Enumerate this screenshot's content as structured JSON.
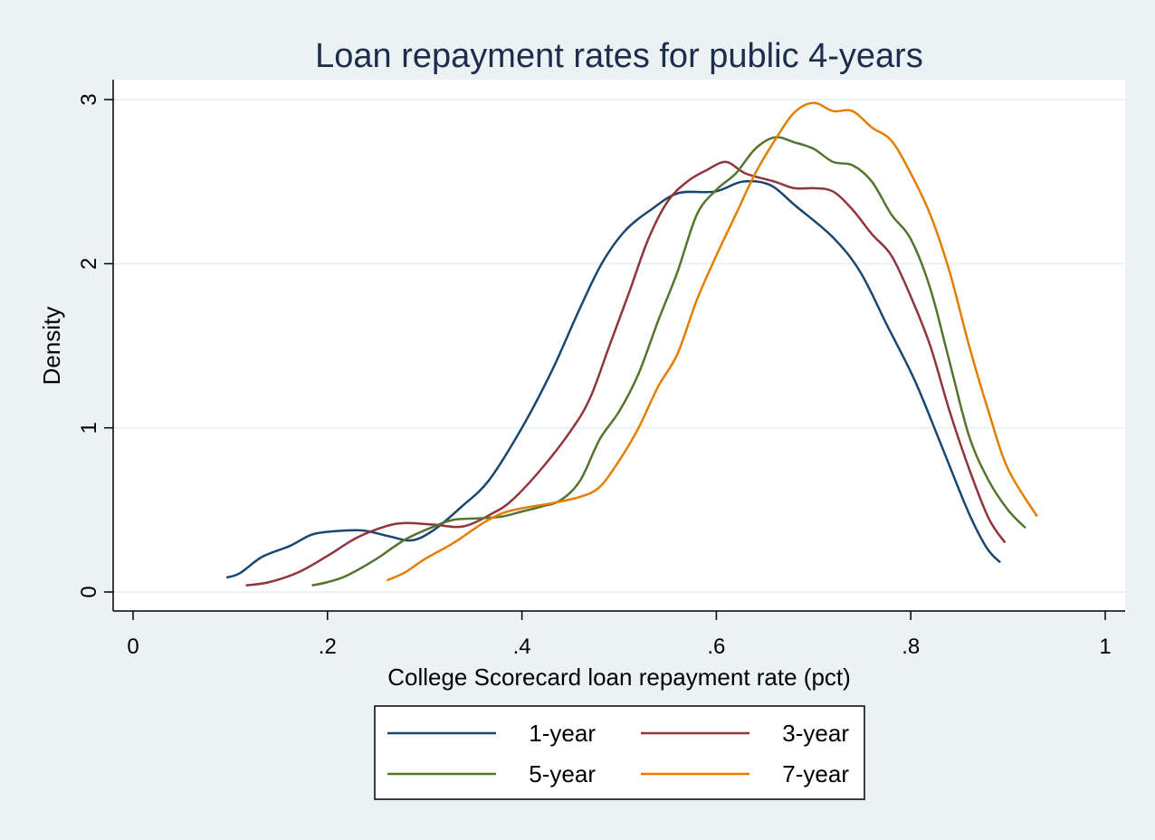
{
  "chart_data": {
    "type": "line",
    "title": "Loan repayment rates for public 4-years",
    "xlabel": "College Scorecard loan repayment rate (pct)",
    "ylabel": "Density",
    "xlim": [
      0,
      1
    ],
    "ylim": [
      0,
      3
    ],
    "xticks": [
      0,
      0.2,
      0.4,
      0.6,
      0.8,
      1
    ],
    "xtick_labels": [
      "0",
      ".2",
      ".4",
      ".6",
      ".8",
      "1"
    ],
    "yticks": [
      0,
      1,
      2,
      3
    ],
    "ytick_labels": [
      "0",
      "1",
      "2",
      "3"
    ],
    "grid": "horizontal",
    "legend_placement": "bottom",
    "series": [
      {
        "name": "1-year",
        "color": "#1a476f",
        "x": [
          0.096,
          0.11,
          0.133,
          0.161,
          0.184,
          0.207,
          0.236,
          0.263,
          0.287,
          0.31,
          0.338,
          0.366,
          0.4,
          0.431,
          0.459,
          0.482,
          0.506,
          0.533,
          0.561,
          0.599,
          0.627,
          0.655,
          0.682,
          0.72,
          0.748,
          0.776,
          0.804,
          0.831,
          0.859,
          0.878,
          0.892
        ],
        "y": [
          0.088,
          0.115,
          0.215,
          0.28,
          0.35,
          0.37,
          0.375,
          0.34,
          0.315,
          0.38,
          0.52,
          0.68,
          1.0,
          1.35,
          1.72,
          2.0,
          2.2,
          2.33,
          2.43,
          2.44,
          2.5,
          2.48,
          2.35,
          2.16,
          1.95,
          1.62,
          1.29,
          0.9,
          0.49,
          0.27,
          0.18
        ]
      },
      {
        "name": "3-year",
        "color": "#90353b",
        "x": [
          0.116,
          0.14,
          0.17,
          0.2,
          0.23,
          0.26,
          0.28,
          0.31,
          0.34,
          0.37,
          0.39,
          0.42,
          0.45,
          0.47,
          0.49,
          0.51,
          0.53,
          0.55,
          0.57,
          0.59,
          0.61,
          0.63,
          0.66,
          0.68,
          0.7,
          0.72,
          0.74,
          0.76,
          0.78,
          0.8,
          0.82,
          0.84,
          0.86,
          0.88,
          0.897
        ],
        "y": [
          0.04,
          0.06,
          0.12,
          0.22,
          0.33,
          0.4,
          0.42,
          0.41,
          0.4,
          0.48,
          0.56,
          0.75,
          0.98,
          1.18,
          1.5,
          1.82,
          2.15,
          2.38,
          2.5,
          2.57,
          2.62,
          2.55,
          2.5,
          2.46,
          2.46,
          2.44,
          2.33,
          2.18,
          2.05,
          1.8,
          1.5,
          1.1,
          0.75,
          0.45,
          0.3
        ]
      },
      {
        "name": "5-year",
        "color": "#55752f",
        "x": [
          0.184,
          0.2,
          0.22,
          0.25,
          0.28,
          0.31,
          0.33,
          0.36,
          0.38,
          0.4,
          0.42,
          0.44,
          0.46,
          0.48,
          0.5,
          0.52,
          0.54,
          0.56,
          0.58,
          0.6,
          0.62,
          0.64,
          0.66,
          0.68,
          0.7,
          0.72,
          0.74,
          0.76,
          0.78,
          0.8,
          0.82,
          0.84,
          0.86,
          0.88,
          0.9,
          0.918
        ],
        "y": [
          0.04,
          0.06,
          0.1,
          0.2,
          0.32,
          0.4,
          0.44,
          0.45,
          0.46,
          0.49,
          0.52,
          0.56,
          0.68,
          0.93,
          1.1,
          1.33,
          1.65,
          1.95,
          2.3,
          2.45,
          2.55,
          2.7,
          2.77,
          2.74,
          2.7,
          2.62,
          2.6,
          2.5,
          2.3,
          2.15,
          1.85,
          1.4,
          0.95,
          0.68,
          0.5,
          0.39
        ]
      },
      {
        "name": "7-year",
        "color": "#e37e00",
        "x": [
          0.261,
          0.28,
          0.3,
          0.33,
          0.36,
          0.38,
          0.4,
          0.43,
          0.46,
          0.48,
          0.5,
          0.52,
          0.54,
          0.56,
          0.58,
          0.6,
          0.62,
          0.64,
          0.66,
          0.68,
          0.7,
          0.72,
          0.74,
          0.76,
          0.78,
          0.8,
          0.82,
          0.84,
          0.86,
          0.88,
          0.9,
          0.93
        ],
        "y": [
          0.07,
          0.12,
          0.2,
          0.3,
          0.42,
          0.48,
          0.51,
          0.54,
          0.58,
          0.64,
          0.8,
          1.0,
          1.25,
          1.45,
          1.78,
          2.05,
          2.3,
          2.55,
          2.75,
          2.92,
          2.98,
          2.93,
          2.93,
          2.83,
          2.75,
          2.55,
          2.3,
          1.95,
          1.5,
          1.1,
          0.75,
          0.46
        ]
      }
    ]
  }
}
